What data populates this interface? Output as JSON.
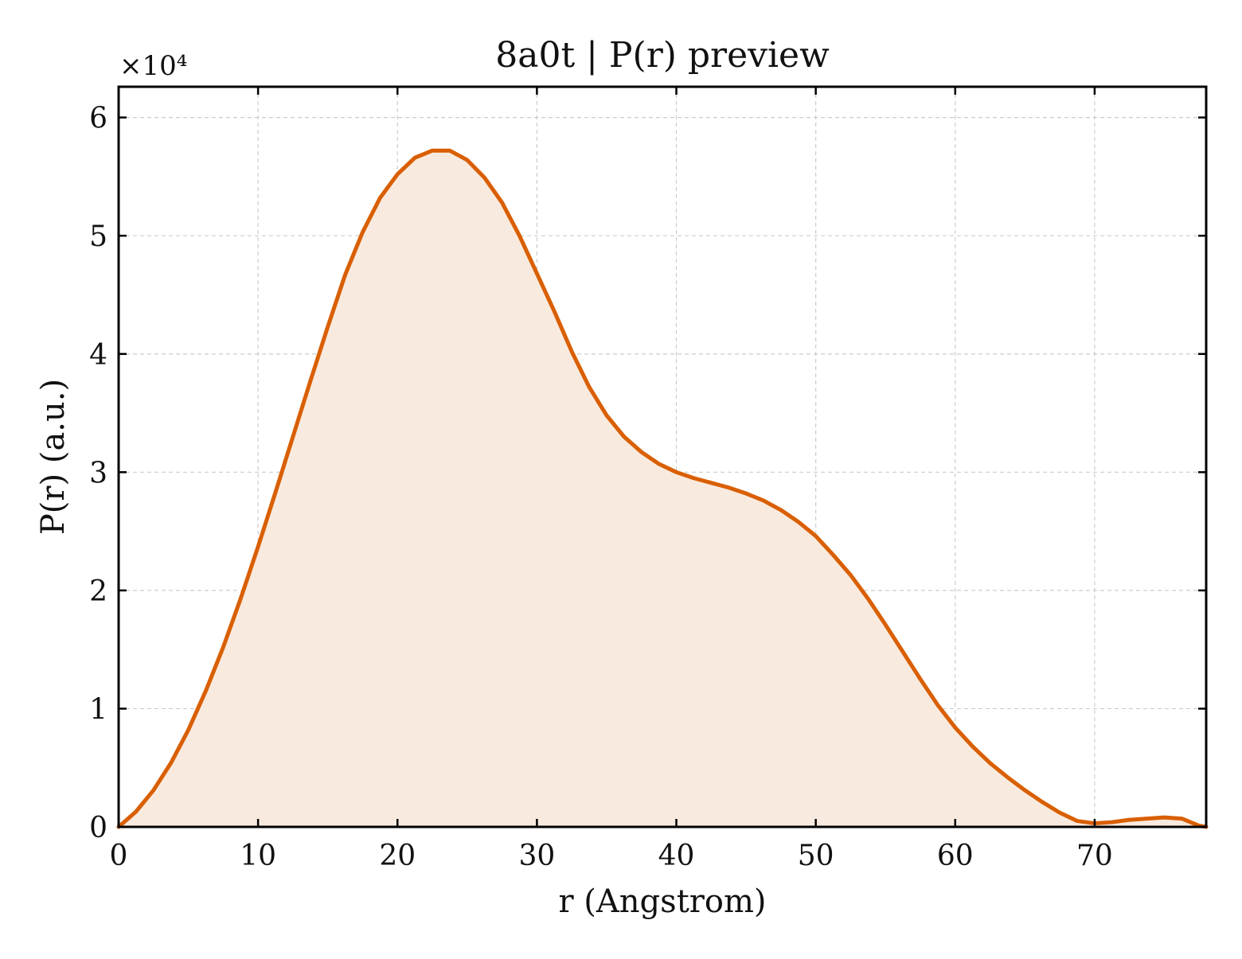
{
  "chart_data": {
    "type": "area",
    "title": "8a0t | P(r) preview",
    "xlabel": "r (Angstrom)",
    "ylabel": "P(r) (a.u.)",
    "y_multiplier": "×10⁴",
    "xlim": [
      0,
      78
    ],
    "ylim": [
      0,
      6.26
    ],
    "y_scale_factor": 10000,
    "xticks": [
      0,
      10,
      20,
      30,
      40,
      50,
      60,
      70
    ],
    "yticks": [
      0,
      1,
      2,
      3,
      4,
      5,
      6
    ],
    "grid": true,
    "colors": {
      "line": "#d95f02",
      "fill": "#f9eadf",
      "grid": "#cccccc",
      "axes": "#000000"
    },
    "series": [
      {
        "x": [
          0,
          1.25,
          2.5,
          3.75,
          5,
          6.25,
          7.5,
          8.75,
          10,
          11.25,
          12.5,
          13.75,
          15,
          16.25,
          17.5,
          18.75,
          20,
          21.25,
          22.5,
          23.75,
          25,
          26.25,
          27.5,
          28.75,
          30,
          31.25,
          32.5,
          33.75,
          35,
          36.25,
          37.5,
          38.75,
          40,
          41.25,
          42.5,
          43.75,
          45,
          46.25,
          47.5,
          48.75,
          50,
          51.25,
          52.5,
          53.75,
          55,
          56.25,
          57.5,
          58.75,
          60,
          61.25,
          62.5,
          63.75,
          65,
          66.25,
          67.5,
          68.75,
          70,
          71.25,
          72.5,
          73.75,
          75,
          76.25,
          77.5,
          78
        ],
        "y": [
          0,
          0.13,
          0.31,
          0.54,
          0.82,
          1.15,
          1.52,
          1.93,
          2.37,
          2.83,
          3.3,
          3.77,
          4.23,
          4.67,
          5.03,
          5.32,
          5.52,
          5.66,
          5.72,
          5.72,
          5.64,
          5.49,
          5.28,
          5.0,
          4.68,
          4.36,
          4.02,
          3.72,
          3.48,
          3.3,
          3.17,
          3.07,
          3.0,
          2.95,
          2.91,
          2.87,
          2.82,
          2.76,
          2.68,
          2.58,
          2.46,
          2.3,
          2.13,
          1.93,
          1.71,
          1.48,
          1.25,
          1.03,
          0.84,
          0.68,
          0.54,
          0.42,
          0.31,
          0.21,
          0.12,
          0.05,
          0.03,
          0.04,
          0.06,
          0.07,
          0.08,
          0.07,
          0.01,
          0
        ]
      }
    ]
  }
}
